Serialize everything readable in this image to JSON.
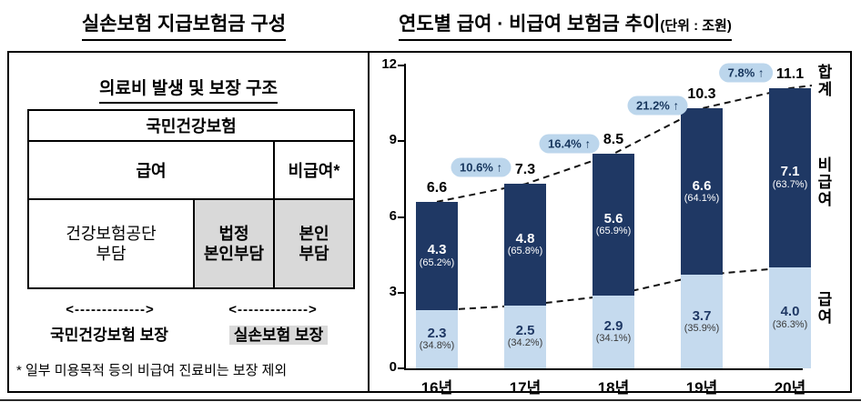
{
  "left_panel": {
    "title": "실손보험 지급보험금 구성",
    "box_title": "의료비 발생 및 보장 구조",
    "table": {
      "header": "국민건강보험",
      "benefit": "급여",
      "non_benefit": "비급여*",
      "cells": [
        "건강보험공단\n부담",
        "법정\n본인부담",
        "본인\n부담"
      ]
    },
    "arrows": {
      "left": "<------------->",
      "right": "<------------->"
    },
    "arrow_labels": {
      "left": "국민건강보험 보장",
      "right": "실손보험 보장"
    },
    "footnote": "* 일부 미용목적 등의 비급여 진료비는 보장 제외"
  },
  "right_panel": {
    "title": "연도별 급여 · 비급여 보험금 추이",
    "unit": "(단위 : 조원)"
  },
  "chart_data": {
    "type": "bar",
    "stacked": true,
    "title": "연도별 급여 · 비급여 보험금 추이",
    "unit": "조원",
    "categories": [
      "16년",
      "17년",
      "18년",
      "19년",
      "20년"
    ],
    "series": [
      {
        "name": "급여",
        "color": "#c5daee",
        "values": [
          2.3,
          2.5,
          2.9,
          3.7,
          4.0
        ],
        "labels": [
          "2.3",
          "2.5",
          "2.9",
          "3.7",
          "4.0"
        ],
        "pct_labels": [
          "(34.8%)",
          "(34.2%)",
          "(34.1%)",
          "(35.9%)",
          "(36.3%)"
        ]
      },
      {
        "name": "비급여",
        "color": "#1f3864",
        "values": [
          4.3,
          4.8,
          5.6,
          6.6,
          7.1
        ],
        "labels": [
          "4.3",
          "4.8",
          "5.6",
          "6.6",
          "7.1"
        ],
        "pct_labels": [
          "(65.2%)",
          "(65.8%)",
          "(65.9%)",
          "(64.1%)",
          "(63.7%)"
        ]
      }
    ],
    "totals": [
      6.6,
      7.3,
      8.5,
      10.3,
      11.1
    ],
    "total_labels": [
      "6.6",
      "7.3",
      "8.5",
      "10.3",
      "11.1"
    ],
    "growth_badges": [
      "10.6% ↑",
      "16.4% ↑",
      "21.2% ↑",
      "7.8% ↑"
    ],
    "badge_bg": "#bcd6ec",
    "y_ticks": [
      0,
      3,
      6,
      9,
      12
    ],
    "ylim": [
      0,
      12
    ],
    "grid": false,
    "legend_right": {
      "total": "합계",
      "non_benefit": "비급여",
      "benefit": "급여"
    }
  }
}
